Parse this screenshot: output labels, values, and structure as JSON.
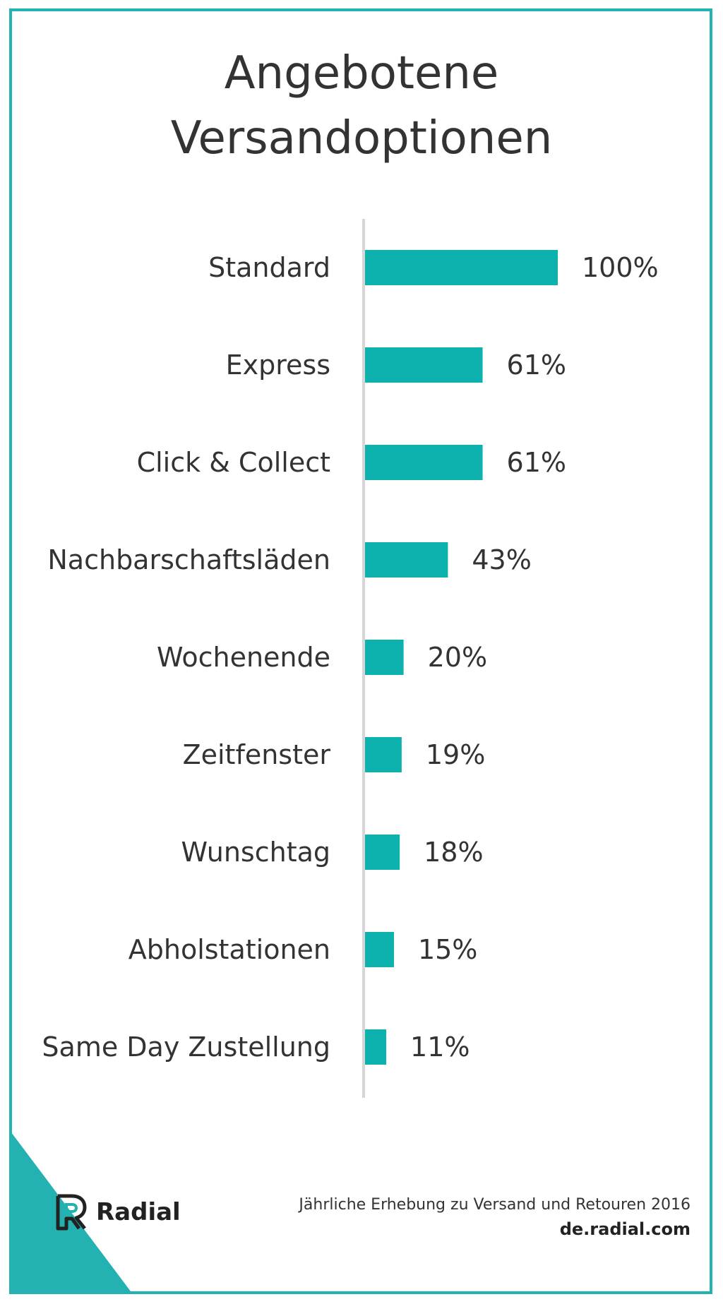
{
  "title": {
    "line1": "Angebotene",
    "line2": "Versandoptionen"
  },
  "colors": {
    "accent": "#0db2ae",
    "border": "#23b1b1",
    "axis": "#d6d6d6",
    "text": "#333333"
  },
  "chart_data": {
    "type": "bar",
    "orientation": "horizontal",
    "title": "Angebotene Versandoptionen",
    "categories": [
      "Standard",
      "Express",
      "Click & Collect",
      "Nachbarschaftsläden",
      "Wochenende",
      "Zeitfenster",
      "Wunschtag",
      "Abholstationen",
      "Same Day Zustellung"
    ],
    "values": [
      100,
      61,
      61,
      43,
      20,
      19,
      18,
      15,
      11
    ],
    "value_labels": [
      "100%",
      "61%",
      "61%",
      "43%",
      "20%",
      "19%",
      "18%",
      "15%",
      "11%"
    ],
    "unit": "%",
    "xlim": [
      0,
      100
    ],
    "grid": false,
    "legend": "none"
  },
  "brand": {
    "name": "Radial",
    "logo_icon": "radial-r-logo"
  },
  "footer": {
    "source": "Jährliche Erhebung zu Versand und Retouren 2016",
    "url": "de.radial.com"
  }
}
